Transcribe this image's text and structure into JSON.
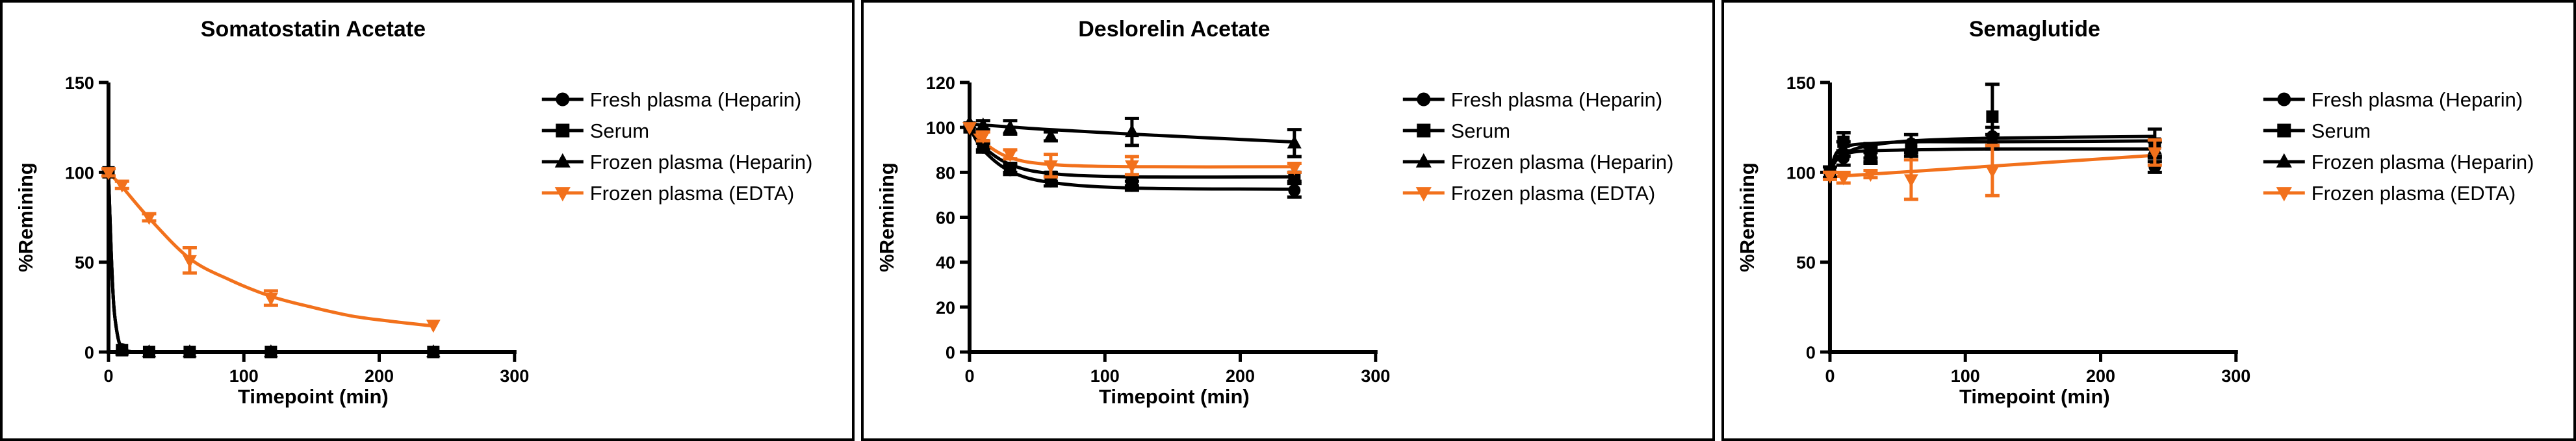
{
  "figure": {
    "background": "#ffffff",
    "panel_border_color": "#000000",
    "axis_color": "#000000",
    "accent_orange": "#F2711C"
  },
  "legend": {
    "items": [
      {
        "label": "Fresh plasma (Heparin)",
        "marker": "circle",
        "color": "#000000"
      },
      {
        "label": "Serum",
        "marker": "square",
        "color": "#000000"
      },
      {
        "label": "Frozen plasma (Heparin)",
        "marker": "triangle-up",
        "color": "#000000"
      },
      {
        "label": "Frozen plasma (EDTA)",
        "marker": "triangle-down",
        "color": "#F2711C"
      }
    ]
  },
  "chart_data": [
    {
      "type": "line",
      "title": "Somatostatin Acetate",
      "xlabel": "Timepoint (min)",
      "ylabel": "%Remining",
      "xlim": [
        0,
        300
      ],
      "ylim": [
        0,
        150
      ],
      "xticks": [
        0,
        100,
        200,
        300
      ],
      "yticks": [
        0,
        50,
        100,
        150
      ],
      "grid": false,
      "legend_position": "right",
      "x": [
        0,
        10,
        30,
        60,
        120,
        240
      ],
      "series": [
        {
          "name": "Fresh plasma (Heparin)",
          "marker": "circle",
          "color": "#000000",
          "values": [
            100,
            1.5,
            0,
            0,
            0,
            0
          ],
          "err": [
            0,
            0,
            0,
            0,
            0,
            0
          ],
          "curve": [
            [
              0,
              100
            ],
            [
              2,
              55
            ],
            [
              4,
              25
            ],
            [
              7,
              8
            ],
            [
              10,
              2
            ],
            [
              14,
              0.5
            ],
            [
              20,
              0
            ],
            [
              30,
              0
            ],
            [
              60,
              0
            ],
            [
              120,
              0
            ],
            [
              240,
              0
            ]
          ]
        },
        {
          "name": "Serum",
          "marker": "square",
          "color": "#000000",
          "values": [
            100,
            1,
            0,
            0,
            0,
            0
          ],
          "err": [
            0,
            0,
            0,
            0,
            0,
            0
          ],
          "curve": [
            [
              0,
              100
            ],
            [
              2,
              55
            ],
            [
              4,
              25
            ],
            [
              7,
              8
            ],
            [
              10,
              2
            ],
            [
              14,
              0.5
            ],
            [
              20,
              0
            ],
            [
              30,
              0
            ],
            [
              60,
              0
            ],
            [
              120,
              0
            ],
            [
              240,
              0
            ]
          ]
        },
        {
          "name": "Frozen plasma (Heparin)",
          "marker": "triangle-up",
          "color": "#000000",
          "values": [
            101,
            1,
            0,
            0,
            0,
            0
          ],
          "err": [
            0,
            0,
            0,
            0,
            0,
            0
          ],
          "curve": [
            [
              0,
              100
            ],
            [
              2,
              55
            ],
            [
              4,
              25
            ],
            [
              7,
              8
            ],
            [
              10,
              2
            ],
            [
              14,
              0.5
            ],
            [
              20,
              0
            ],
            [
              30,
              0
            ],
            [
              60,
              0
            ],
            [
              120,
              0
            ],
            [
              240,
              0
            ]
          ]
        },
        {
          "name": "Frozen plasma (EDTA)",
          "marker": "triangle-down",
          "color": "#F2711C",
          "values": [
            100,
            93,
            75,
            51,
            30,
            15
          ],
          "err": [
            2,
            2,
            2,
            7,
            4,
            0
          ],
          "curve": [
            [
              0,
              100
            ],
            [
              10,
              92
            ],
            [
              30,
              74.5
            ],
            [
              60,
              52
            ],
            [
              90,
              40
            ],
            [
              120,
              31
            ],
            [
              150,
              25
            ],
            [
              180,
              20
            ],
            [
              210,
              17
            ],
            [
              240,
              14.5
            ]
          ]
        }
      ]
    },
    {
      "type": "line",
      "title": "Deslorelin Acetate",
      "xlabel": "Timepoint (min)",
      "ylabel": "%Remining",
      "xlim": [
        0,
        300
      ],
      "ylim": [
        0,
        120
      ],
      "xticks": [
        0,
        100,
        200,
        300
      ],
      "yticks": [
        0,
        20,
        40,
        60,
        80,
        100,
        120
      ],
      "grid": false,
      "legend_position": "right",
      "x": [
        0,
        10,
        30,
        60,
        120,
        240
      ],
      "series": [
        {
          "name": "Fresh plasma (Heparin)",
          "marker": "circle",
          "color": "#000000",
          "values": [
            100,
            91,
            81,
            76,
            74,
            72
          ],
          "err": [
            0,
            2,
            2,
            2,
            2,
            3
          ],
          "curve": [
            [
              0,
              100
            ],
            [
              10,
              90
            ],
            [
              30,
              80.5
            ],
            [
              60,
              75.5
            ],
            [
              120,
              73
            ],
            [
              240,
              72.5
            ]
          ]
        },
        {
          "name": "Serum",
          "marker": "square",
          "color": "#000000",
          "values": [
            100,
            92,
            82,
            78,
            76,
            78
          ],
          "err": [
            0,
            2,
            2,
            2,
            2,
            2
          ],
          "curve": [
            [
              0,
              100
            ],
            [
              10,
              91.5
            ],
            [
              30,
              83.5
            ],
            [
              60,
              79.5
            ],
            [
              120,
              78
            ],
            [
              240,
              78
            ]
          ]
        },
        {
          "name": "Frozen plasma (Heparin)",
          "marker": "triangle-up",
          "color": "#000000",
          "values": [
            102,
            101,
            100,
            96,
            98,
            93
          ],
          "err": [
            0,
            2,
            3,
            2,
            6,
            6
          ],
          "curve": [
            [
              0,
              101.5
            ],
            [
              30,
              100.2
            ],
            [
              60,
              99
            ],
            [
              120,
              97
            ],
            [
              240,
              93.5
            ]
          ]
        },
        {
          "name": "Frozen plasma (EDTA)",
          "marker": "triangle-down",
          "color": "#F2711C",
          "values": [
            100,
            96,
            88,
            83,
            83,
            82
          ],
          "err": [
            0,
            2,
            2,
            5,
            4,
            2
          ],
          "curve": [
            [
              0,
              100.5
            ],
            [
              10,
              93.5
            ],
            [
              30,
              86.5
            ],
            [
              60,
              83.5
            ],
            [
              120,
              82.5
            ],
            [
              240,
              82.5
            ]
          ]
        }
      ]
    },
    {
      "type": "line",
      "title": "Semaglutide",
      "xlabel": "Timepoint (min)",
      "ylabel": "%Remining",
      "xlim": [
        0,
        300
      ],
      "ylim": [
        0,
        150
      ],
      "xticks": [
        0,
        100,
        200,
        300
      ],
      "yticks": [
        0,
        50,
        100,
        150
      ],
      "grid": false,
      "legend_position": "right",
      "x": [
        0,
        10,
        30,
        60,
        120,
        240
      ],
      "series": [
        {
          "name": "Fresh plasma (Heparin)",
          "marker": "circle",
          "color": "#000000",
          "values": [
            100,
            108,
            112,
            116,
            120,
            103
          ],
          "err": [
            0,
            4,
            4,
            5,
            5,
            3
          ],
          "curve": [
            [
              0,
              100
            ],
            [
              5,
              107
            ],
            [
              15,
              112
            ],
            [
              30,
              115
            ],
            [
              60,
              117.5
            ],
            [
              120,
              119
            ],
            [
              240,
              120
            ]
          ]
        },
        {
          "name": "Serum",
          "marker": "square",
          "color": "#000000",
          "values": [
            100,
            117,
            110,
            112,
            131,
            116
          ],
          "err": [
            0,
            5,
            4,
            5,
            18,
            8
          ],
          "curve": [
            [
              0,
              100
            ],
            [
              5,
              111
            ],
            [
              15,
              115
            ],
            [
              30,
              116
            ],
            [
              60,
              117
            ],
            [
              120,
              117
            ],
            [
              240,
              117.5
            ]
          ]
        },
        {
          "name": "Frozen plasma (Heparin)",
          "marker": "triangle-up",
          "color": "#000000",
          "values": [
            100,
            113,
            108,
            113,
            117,
            113
          ],
          "err": [
            3,
            4,
            3,
            4,
            4,
            4
          ],
          "curve": [
            [
              0,
              100
            ],
            [
              5,
              108
            ],
            [
              15,
              111
            ],
            [
              30,
              112
            ],
            [
              60,
              112.5
            ],
            [
              120,
              113
            ],
            [
              240,
              113
            ]
          ]
        },
        {
          "name": "Frozen plasma (EDTA)",
          "marker": "triangle-down",
          "color": "#F2711C",
          "values": [
            98,
            97,
            99,
            96,
            101,
            111
          ],
          "err": [
            2,
            3,
            2,
            11,
            14,
            7
          ],
          "curve": [
            [
              0,
              97.5
            ],
            [
              240,
              109.5
            ]
          ]
        }
      ]
    }
  ]
}
